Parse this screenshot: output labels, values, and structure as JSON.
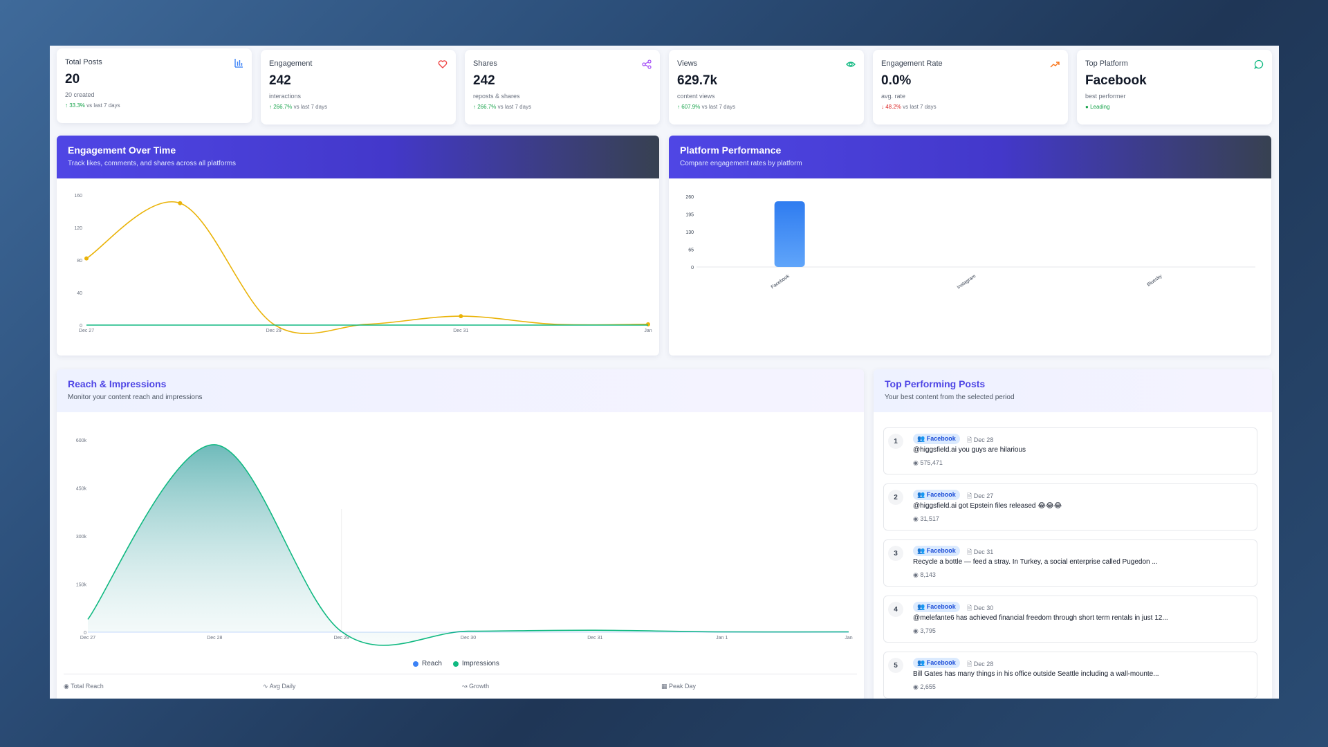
{
  "stats": [
    {
      "label": "Total Posts",
      "value": "20",
      "sub": "20 created",
      "trend": "33.3%",
      "trend_dir": "up",
      "trend_suffix": "vs last 7 days",
      "icon": "bar-chart-icon",
      "icon_color": "#3b82f6"
    },
    {
      "label": "Engagement",
      "value": "242",
      "sub": "interactions",
      "trend": "266.7%",
      "trend_dir": "up",
      "trend_suffix": "vs last 7 days",
      "icon": "heart-icon",
      "icon_color": "#ef4444"
    },
    {
      "label": "Shares",
      "value": "242",
      "sub": "reposts & shares",
      "trend": "266.7%",
      "trend_dir": "up",
      "trend_suffix": "vs last 7 days",
      "icon": "share-icon",
      "icon_color": "#a855f7"
    },
    {
      "label": "Views",
      "value": "629.7k",
      "sub": "content views",
      "trend": "607.9%",
      "trend_dir": "up",
      "trend_suffix": "vs last 7 days",
      "icon": "eye-icon",
      "icon_color": "#10b981"
    },
    {
      "label": "Engagement Rate",
      "value": "0.0%",
      "sub": "avg. rate",
      "trend": "48.2%",
      "trend_dir": "down",
      "trend_suffix": "vs last 7 days",
      "icon": "trending-up-icon",
      "icon_color": "#f97316"
    },
    {
      "label": "Top Platform",
      "value": "Facebook",
      "sub": "best performer",
      "trend": "Leading",
      "trend_dir": "up",
      "trend_suffix": "",
      "icon": "message-circle-icon",
      "icon_color": "#10b981"
    }
  ],
  "engagement_panel": {
    "title": "Engagement Over Time",
    "subtitle": "Track likes, comments, and shares across all platforms"
  },
  "platform_panel": {
    "title": "Platform Performance",
    "subtitle": "Compare engagement rates by platform"
  },
  "reach_panel": {
    "title": "Reach & Impressions",
    "subtitle": "Monitor your content reach and impressions"
  },
  "posts_panel": {
    "title": "Top Performing Posts",
    "subtitle": "Your best content from the selected period"
  },
  "reach_footer": [
    "Total Reach",
    "Avg Daily",
    "Growth",
    "Peak Day"
  ],
  "posts": [
    {
      "rank": "1",
      "platform": "Facebook",
      "date": "Dec 28",
      "text": "@higgsfield.ai you guys are hilarious",
      "views": "575,471"
    },
    {
      "rank": "2",
      "platform": "Facebook",
      "date": "Dec 27",
      "text": "@higgsfield.ai got Epstein files released 😂😂😂",
      "views": "31,517"
    },
    {
      "rank": "3",
      "platform": "Facebook",
      "date": "Dec 31",
      "text": "Recycle a bottle — feed a stray. In Turkey, a social enterprise called Pugedon ...",
      "views": "8,143"
    },
    {
      "rank": "4",
      "platform": "Facebook",
      "date": "Dec 30",
      "text": "@melefante6 has achieved financial freedom through short term rentals in just 12...",
      "views": "3,795"
    },
    {
      "rank": "5",
      "platform": "Facebook",
      "date": "Dec 28",
      "text": "Bill Gates has many things in his office outside Seattle including a wall-mounte...",
      "views": "2,655"
    }
  ],
  "chart_data": [
    {
      "type": "line",
      "x": [
        "Dec 27",
        "Dec 28",
        "Dec 29",
        "Dec 30",
        "Dec 31",
        "Jan 1",
        "Jan"
      ],
      "x_ticks": [
        "Dec 27",
        "Dec 29",
        "Dec 31",
        "Jan"
      ],
      "y_ticks": [
        "0",
        "40",
        "80",
        "120",
        "160"
      ],
      "ylim": [
        0,
        160
      ],
      "series": [
        {
          "values": [
            82,
            150,
            1,
            1,
            11,
            1,
            1
          ],
          "color": "#eab308"
        },
        {
          "values": [
            0,
            0,
            0,
            0,
            0,
            0,
            0
          ],
          "color": "#10b981"
        }
      ]
    },
    {
      "type": "bar",
      "categories": [
        "Facebook",
        "Instagram",
        "Bluesky"
      ],
      "values": [
        242,
        0,
        0
      ],
      "y_ticks": [
        "0",
        "65",
        "130",
        "195",
        "260"
      ],
      "ylim": [
        0,
        260
      ],
      "color": "#3b82f6"
    },
    {
      "type": "area",
      "x": [
        "Dec 27",
        "Dec 28",
        "Dec 29",
        "Dec 30",
        "Dec 31",
        "Jan 1",
        "Jan"
      ],
      "x_ticks": [
        "Dec 27",
        "Dec 28",
        "Dec 29",
        "Dec 30",
        "Dec 31",
        "Jan 1",
        "Jan"
      ],
      "y_ticks": [
        "0",
        "150k",
        "300k",
        "450k",
        "600k"
      ],
      "ylim": [
        0,
        600000
      ],
      "series": [
        {
          "name": "Reach",
          "values": [
            0,
            0,
            0,
            0,
            0,
            0,
            0
          ],
          "color": "#3b82f6"
        },
        {
          "name": "Impressions",
          "values": [
            40000,
            585000,
            2000,
            3000,
            6000,
            1000,
            1000
          ],
          "color": "#10b981"
        }
      ]
    }
  ]
}
